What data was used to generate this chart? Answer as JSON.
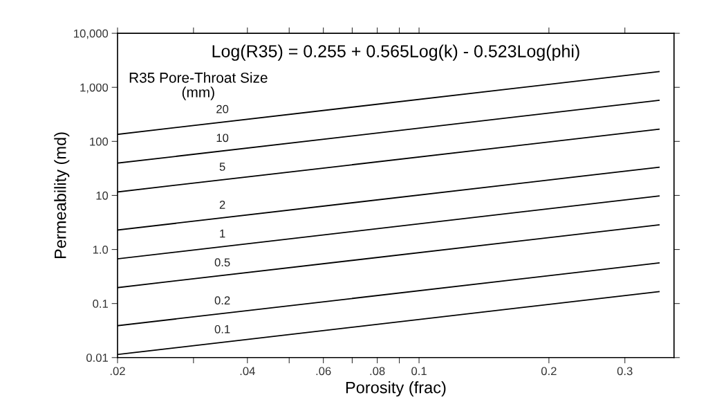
{
  "chart_data": {
    "type": "line",
    "xlabel": "Porosity (frac)",
    "ylabel": "Permeability (md)",
    "annotations": [
      "Log(R35) = 0.255 + 0.565Log(k) - 0.523Log(phi)",
      "R35 Pore-Throat Size\n(mm)"
    ],
    "log": "xy",
    "grid": false,
    "legend": false,
    "marker": "none",
    "line_style": "solid",
    "x": [
      0.02,
      0.36
    ],
    "series": [
      {
        "name": "20",
        "color": "#000000",
        "values": [
          135,
          1960
        ]
      },
      {
        "name": "10",
        "color": "#000000",
        "values": [
          39.6,
          574
        ]
      },
      {
        "name": "5",
        "color": "#000000",
        "values": [
          11.6,
          168
        ]
      },
      {
        "name": "2",
        "color": "#000000",
        "values": [
          2.29,
          33.3
        ]
      },
      {
        "name": "1",
        "color": "#000000",
        "values": [
          0.672,
          9.76
        ]
      },
      {
        "name": "0.5",
        "color": "#000000",
        "values": [
          0.197,
          2.86
        ]
      },
      {
        "name": "0.2",
        "color": "#000000",
        "values": [
          0.0389,
          0.565
        ]
      },
      {
        "name": "0.1",
        "color": "#000000",
        "values": [
          0.0114,
          0.166
        ]
      }
    ],
    "xlim": [
      0.02,
      0.39
    ],
    "xticks": [
      {
        "value": 0.02,
        "label": ".02"
      },
      {
        "value": 0.03,
        "label": null
      },
      {
        "value": 0.04,
        "label": ".04"
      },
      {
        "value": 0.05,
        "label": null
      },
      {
        "value": 0.06,
        "label": ".06"
      },
      {
        "value": 0.07,
        "label": null
      },
      {
        "value": 0.08,
        "label": ".08"
      },
      {
        "value": 0.09,
        "label": null
      },
      0.1,
      0.2,
      0.3
    ],
    "ylim": [
      0.01,
      10000
    ],
    "yticks": [
      {
        "value": 0.01,
        "label": "0.01"
      },
      0.1,
      {
        "value": 1,
        "label": "1.0"
      },
      10,
      100,
      {
        "value": 1000,
        "label": "1,000"
      },
      {
        "value": 10000,
        "label": "10,000"
      }
    ]
  }
}
